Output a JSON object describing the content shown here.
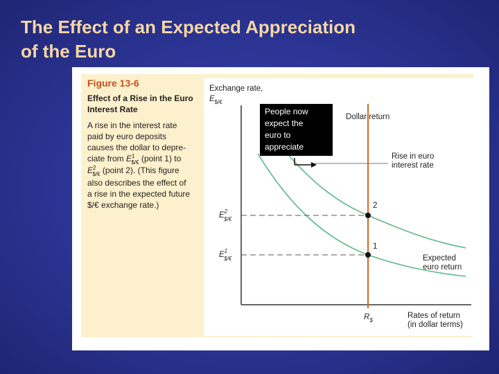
{
  "slide": {
    "title": [
      "The Effect of an Expected Appreciation",
      "of the Euro"
    ]
  },
  "figure": {
    "label": "Figure 13-6",
    "heading": [
      "Effect of a Rise in the Euro",
      "Interest Rate"
    ],
    "caption": [
      "A rise in the interest rate",
      "paid by euro deposits",
      "causes the dollar to depre-",
      [
        "ciate from ",
        "E",
        "1",
        "$/€",
        " (point 1) to"
      ],
      [
        "E",
        "2",
        "$/€",
        " (point 2). (This figure"
      ],
      "also describes the effect of",
      "a rise in the expected future",
      "$/€ exchange rate.)"
    ],
    "diagram": {
      "y_axis_label": [
        "Exchange rate,",
        "E",
        "$/€"
      ],
      "x_axis_label": [
        "Rates of return",
        "(in dollar terms)"
      ],
      "callout": [
        "People now",
        "expect the",
        "euro to",
        "appreciate"
      ],
      "dollar_return": "Dollar return",
      "shift_label": [
        "Rise in euro",
        "interest rate"
      ],
      "expected_return": [
        "Expected",
        "euro return"
      ],
      "points": [
        "1",
        "2"
      ],
      "e1": [
        "E",
        "1",
        "$/€"
      ],
      "e2": [
        "E",
        "2",
        "$/€"
      ],
      "r_dollar": [
        "R",
        "$"
      ]
    }
  }
}
